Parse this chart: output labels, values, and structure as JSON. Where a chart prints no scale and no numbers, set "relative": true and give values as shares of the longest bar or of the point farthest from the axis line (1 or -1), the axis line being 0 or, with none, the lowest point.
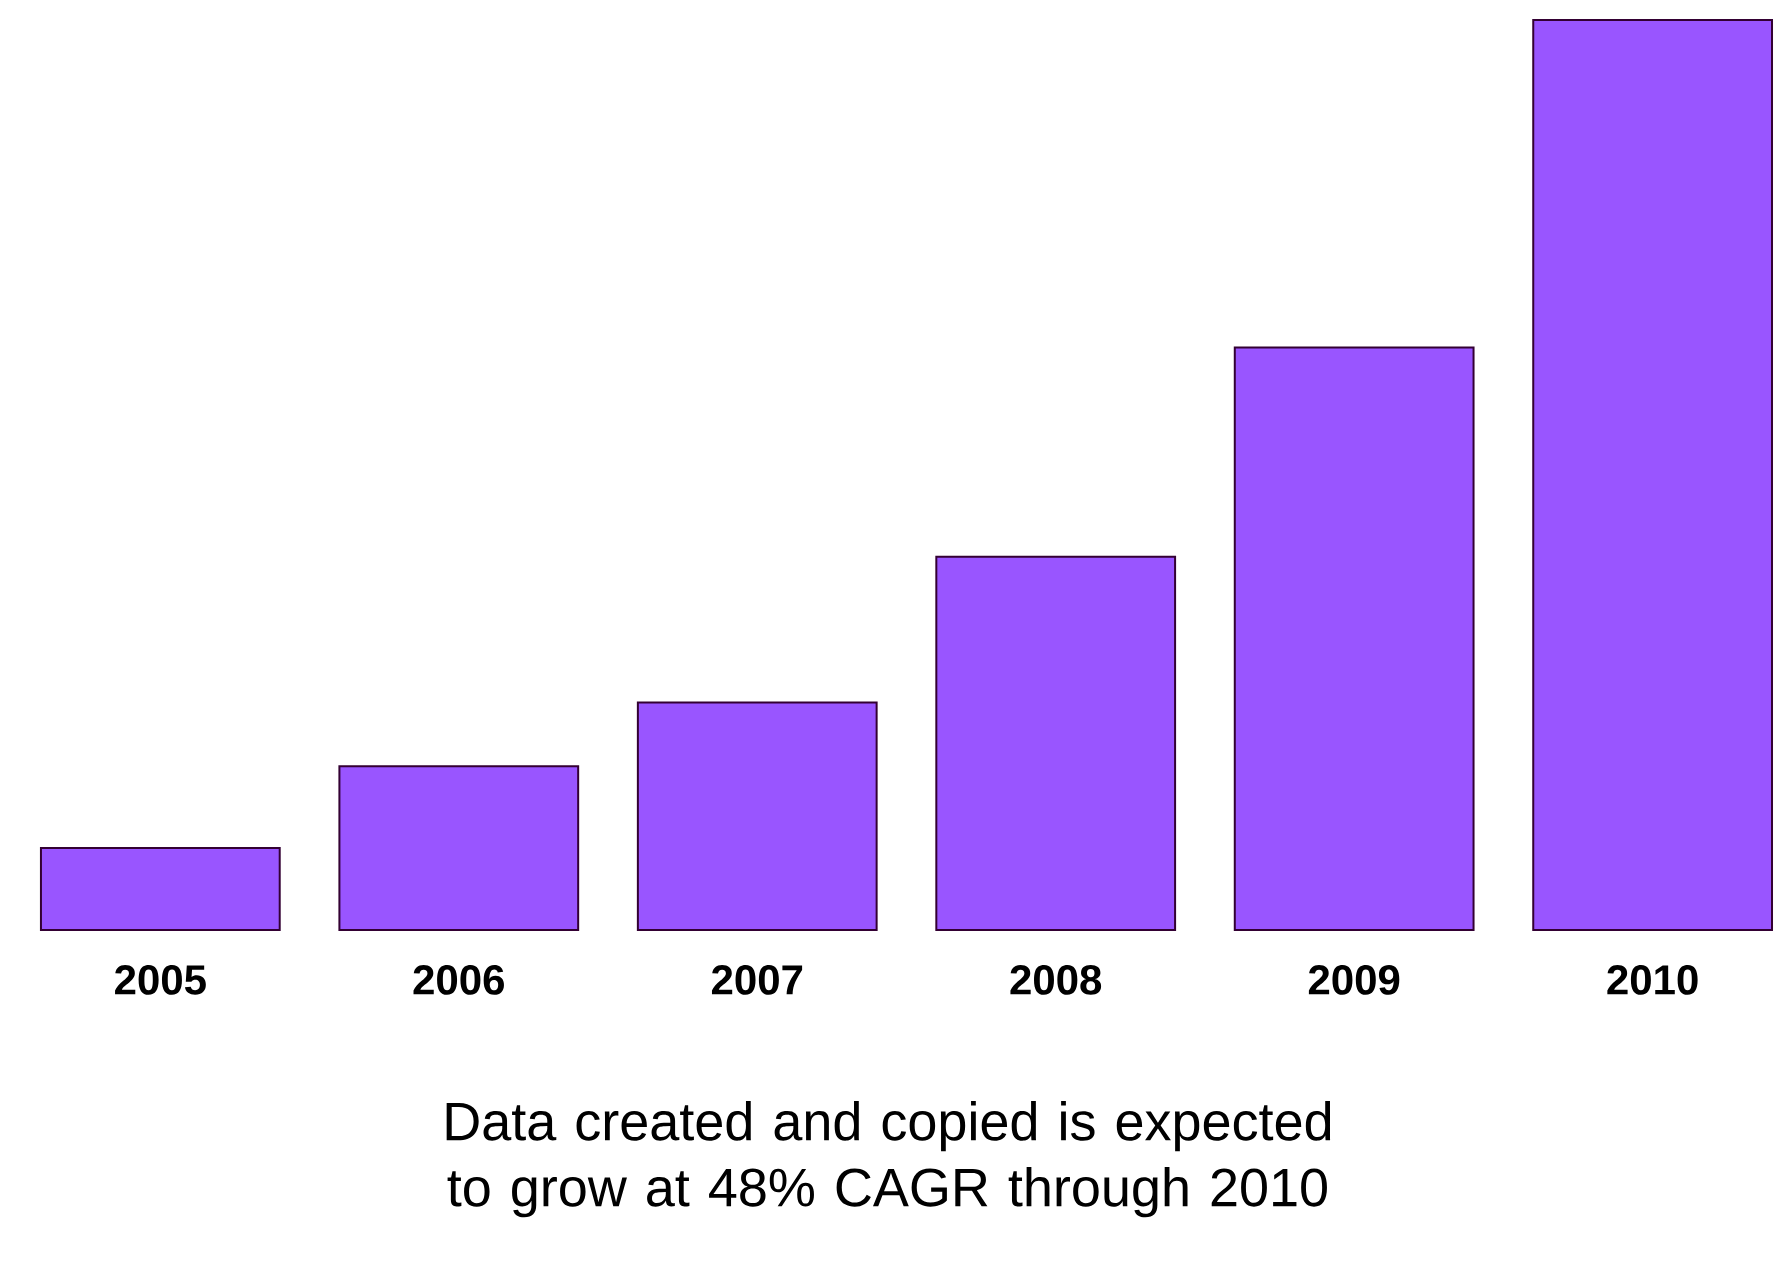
{
  "chart_data": {
    "type": "bar",
    "relative": true,
    "categories": [
      "2005",
      "2006",
      "2007",
      "2008",
      "2009",
      "2010"
    ],
    "values": [
      0.09,
      0.18,
      0.25,
      0.41,
      0.64,
      1
    ],
    "color": "#9955ff",
    "annotations": [
      "Data created and copied is expected to grow at 48% CAGR through 2010"
    ]
  }
}
